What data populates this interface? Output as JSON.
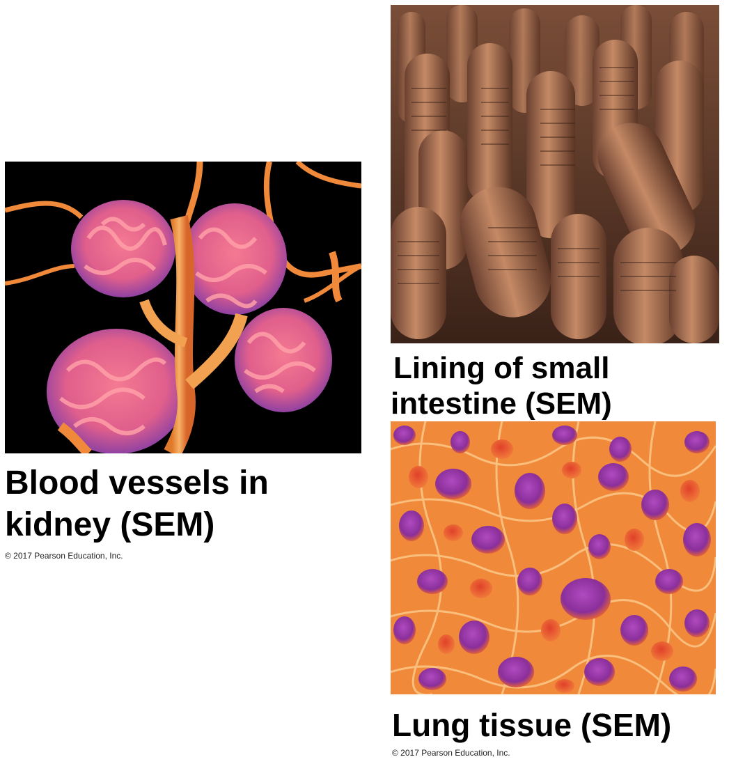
{
  "figures": [
    {
      "id": "kidney",
      "caption_line1": "Blood vessels in",
      "caption_line2": "kidney (SEM)",
      "copyright": "© 2017 Pearson Education, Inc."
    },
    {
      "id": "intestine",
      "caption_line1": "Lining of small",
      "caption_line2": "intestine (SEM)"
    },
    {
      "id": "lung",
      "caption_line1": "Lung tissue (SEM)",
      "copyright": "© 2017 Pearson Education, Inc."
    }
  ],
  "colors": {
    "kidney_background": "#000000",
    "kidney_vessel": "#f0913a",
    "kidney_glomerulus": "#e86a8c",
    "kidney_glomerulus_shadow": "#8a3fb0",
    "intestine_base": "#5a3a2a",
    "intestine_villus": "#b07050",
    "lung_base": "#f08a3a",
    "lung_alveolus": "#9b3fa8",
    "lung_highlight": "#ffd49a"
  }
}
